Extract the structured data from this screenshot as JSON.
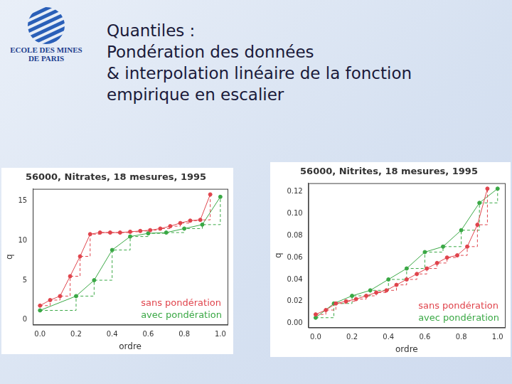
{
  "slide": {
    "logo_lines": [
      "ECOLE DES MINES",
      "DE PARIS"
    ],
    "title_lines": [
      "Quantiles :",
      "Pondération des données",
      "& interpolation linéaire de la fonction",
      "empirique en escalier"
    ]
  },
  "chart_data": [
    {
      "type": "line",
      "title": "56000, Nitrates, 18 mesures, 1995",
      "x_label": "ordre",
      "y_label": "q",
      "xlim": [
        -0.04,
        1.04
      ],
      "xticks": [
        {
          "value": 0,
          "label": "0.0"
        },
        {
          "value": 0.2,
          "label": "0.2"
        },
        {
          "value": 0.4,
          "label": "0.4"
        },
        {
          "value": 0.6,
          "label": "0.6"
        },
        {
          "value": 0.8,
          "label": "0.8"
        },
        {
          "value": 1,
          "label": "1.0"
        }
      ],
      "ylim": [
        -0.6,
        16.5
      ],
      "yticks": [
        0,
        5,
        10,
        15
      ],
      "grid": false,
      "legend": "bottom-right",
      "marker": "circle",
      "series": [
        {
          "name": "sans pondération",
          "color": "#e0444c",
          "x": [
            0,
            0.056,
            0.111,
            0.167,
            0.222,
            0.278,
            0.333,
            0.389,
            0.444,
            0.5,
            0.556,
            0.611,
            0.667,
            0.722,
            0.778,
            0.833,
            0.889,
            0.944
          ],
          "values": [
            1.8,
            2.5,
            3.0,
            5.5,
            8.0,
            10.8,
            11.0,
            11.0,
            11.0,
            11.1,
            11.2,
            11.3,
            11.5,
            11.8,
            12.2,
            12.5,
            12.6,
            15.8
          ]
        },
        {
          "name": "avec pondération",
          "color": "#3aa845",
          "x": [
            0,
            0.2,
            0.3,
            0.4,
            0.5,
            0.6,
            0.7,
            0.8,
            0.9,
            1
          ],
          "values": [
            1.2,
            3.0,
            5.0,
            8.8,
            10.5,
            10.9,
            11.0,
            11.5,
            12.0,
            15.5
          ]
        }
      ]
    },
    {
      "type": "line",
      "title": "56000, Nitrites, 18 mesures, 1995",
      "x_label": "ordre",
      "y_label": "q",
      "xlim": [
        -0.04,
        1.04
      ],
      "xticks": [
        {
          "value": 0,
          "label": "0.0"
        },
        {
          "value": 0.2,
          "label": "0.2"
        },
        {
          "value": 0.4,
          "label": "0.4"
        },
        {
          "value": 0.6,
          "label": "0.6"
        },
        {
          "value": 0.8,
          "label": "0.8"
        },
        {
          "value": 1,
          "label": "1.0"
        }
      ],
      "ylim": [
        -0.004,
        0.128
      ],
      "yticks": [
        {
          "value": 0,
          "label": "0.00"
        },
        {
          "value": 0.02,
          "label": "0.02"
        },
        {
          "value": 0.04,
          "label": "0.04"
        },
        {
          "value": 0.06,
          "label": "0.06"
        },
        {
          "value": 0.08,
          "label": "0.08"
        },
        {
          "value": 0.1,
          "label": "0.10"
        },
        {
          "value": 0.12,
          "label": "0.12"
        }
      ],
      "grid": false,
      "legend": "bottom-right",
      "marker": "circle",
      "series": [
        {
          "name": "sans pondération",
          "color": "#e0444c",
          "x": [
            0,
            0.056,
            0.111,
            0.167,
            0.222,
            0.278,
            0.333,
            0.389,
            0.444,
            0.5,
            0.556,
            0.611,
            0.667,
            0.722,
            0.778,
            0.833,
            0.889,
            0.944
          ],
          "values": [
            0.008,
            0.012,
            0.018,
            0.02,
            0.022,
            0.025,
            0.028,
            0.03,
            0.035,
            0.04,
            0.045,
            0.05,
            0.055,
            0.06,
            0.062,
            0.07,
            0.09,
            0.123
          ]
        },
        {
          "name": "avec pondération",
          "color": "#3aa845",
          "x": [
            0,
            0.1,
            0.2,
            0.3,
            0.4,
            0.5,
            0.6,
            0.7,
            0.8,
            0.9,
            1
          ],
          "values": [
            0.005,
            0.018,
            0.025,
            0.03,
            0.04,
            0.05,
            0.065,
            0.07,
            0.085,
            0.11,
            0.123
          ]
        }
      ]
    }
  ]
}
